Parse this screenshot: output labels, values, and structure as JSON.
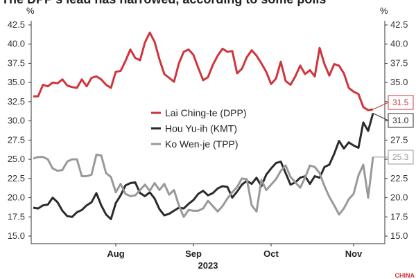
{
  "chart_data": {
    "type": "line",
    "title": "The DPP's lead has narrowed, according to some polls",
    "y_unit": "%",
    "x_axis_label": "2023",
    "logo": "CHINA",
    "categories": [
      null,
      null,
      null,
      null,
      null,
      null,
      null,
      null,
      null,
      null,
      null,
      null,
      null,
      null,
      null,
      null,
      null,
      "Aug",
      null,
      null,
      null,
      null,
      null,
      null,
      null,
      null,
      null,
      null,
      null,
      null,
      null,
      null,
      null,
      "Sep",
      null,
      null,
      null,
      null,
      null,
      null,
      null,
      null,
      null,
      null,
      null,
      null,
      null,
      null,
      null,
      "Oct",
      null,
      null,
      null,
      null,
      null,
      null,
      null,
      null,
      null,
      null,
      null,
      null,
      null,
      null,
      null,
      null,
      "Nov",
      null,
      null,
      null,
      null
    ],
    "series": [
      {
        "name": "Lai Ching-te (DPP)",
        "color": "#d0343c",
        "end_label": "31.5",
        "values": [
          33.2,
          33.2,
          34.7,
          34.5,
          35.0,
          34.9,
          35.4,
          34.6,
          34.4,
          34.3,
          35.4,
          34.5,
          35.6,
          35.8,
          35.4,
          34.7,
          34.3,
          36.4,
          36.5,
          37.8,
          39.3,
          38.2,
          37.9,
          40.2,
          41.5,
          40.3,
          38.0,
          36.1,
          35.6,
          35.1,
          37.5,
          39.0,
          39.3,
          38.6,
          36.9,
          35.3,
          35.7,
          37.3,
          38.5,
          39.4,
          39.0,
          39.1,
          36.2,
          36.8,
          38.3,
          39.2,
          38.5,
          37.5,
          36.4,
          34.8,
          35.5,
          37.7,
          35.2,
          34.7,
          35.8,
          37.2,
          36.1,
          36.6,
          35.8,
          39.5,
          37.4,
          35.9,
          37.4,
          37.2,
          36.2,
          34.3,
          33.8,
          33.5,
          31.8,
          31.4,
          31.5
        ]
      },
      {
        "name": "Hou Yu-ih (KMT)",
        "color": "#2b2b2b",
        "end_label": "31.0",
        "values": [
          18.7,
          18.6,
          19.0,
          19.1,
          20.0,
          19.4,
          18.3,
          17.6,
          17.5,
          18.1,
          18.4,
          19.0,
          19.4,
          20.6,
          19.0,
          17.8,
          17.2,
          19.3,
          20.3,
          21.6,
          21.9,
          22.0,
          20.6,
          20.2,
          20.7,
          19.9,
          18.5,
          17.7,
          17.9,
          18.3,
          18.7,
          18.6,
          19.2,
          19.7,
          20.5,
          20.9,
          20.3,
          20.6,
          21.2,
          21.5,
          21.4,
          20.0,
          20.8,
          21.7,
          22.2,
          21.8,
          22.6,
          21.5,
          23.0,
          23.8,
          24.5,
          24.7,
          23.2,
          21.7,
          22.0,
          22.6,
          22.8,
          21.8,
          22.8,
          22.6,
          24.0,
          24.3,
          25.7,
          27.4,
          26.4,
          27.2,
          26.8,
          26.5,
          29.8,
          28.7,
          31.0
        ]
      },
      {
        "name": "Ko Wen-je (TPP)",
        "color": "#999999",
        "end_label": "25.3",
        "values": [
          25.1,
          25.3,
          25.3,
          25.0,
          23.8,
          23.5,
          23.6,
          24.7,
          25.0,
          25.0,
          22.8,
          22.8,
          23.0,
          25.6,
          25.5,
          23.2,
          22.7,
          20.7,
          21.8,
          20.5,
          20.2,
          20.3,
          21.0,
          21.7,
          20.9,
          21.9,
          21.0,
          21.8,
          20.4,
          21.0,
          19.0,
          17.5,
          18.4,
          18.3,
          18.3,
          18.6,
          19.6,
          18.9,
          18.2,
          18.9,
          19.9,
          20.7,
          21.4,
          22.5,
          22.4,
          19.0,
          18.2,
          22.3,
          21.0,
          21.7,
          22.4,
          23.5,
          24.2,
          22.7,
          22.0,
          21.3,
          22.6,
          24.2,
          24.0,
          23.2,
          21.5,
          20.1,
          19.0,
          17.8,
          18.6,
          19.8,
          20.5,
          22.9,
          24.3,
          20.0,
          25.3
        ]
      }
    ],
    "ylim": [
      15,
      42.5
    ],
    "yticks": [
      {
        "value": 15,
        "label": "15.0"
      },
      {
        "value": 17.5,
        "label": "17.5"
      },
      {
        "value": 20,
        "label": "20.0"
      },
      {
        "value": 22.5,
        "label": "22.5"
      },
      {
        "value": 25,
        "label": "25.0"
      },
      {
        "value": 27.5,
        "label": "27.5"
      },
      {
        "value": 30,
        "label": "30.0"
      },
      {
        "value": 32.5,
        "label": "32.5"
      },
      {
        "value": 35,
        "label": "35.0"
      },
      {
        "value": 37.5,
        "label": "37.5"
      },
      {
        "value": 40,
        "label": "40.0"
      },
      {
        "value": 42.5,
        "label": "42.5"
      }
    ],
    "y2lim": [
      15,
      42.5
    ],
    "y2ticks": [
      {
        "value": 15,
        "label": "15.0"
      },
      {
        "value": 17.5,
        "label": "17.5"
      },
      {
        "value": 20,
        "label": "20.0"
      },
      {
        "value": 22.5,
        "label": "22.5"
      },
      {
        "value": 25,
        "label": "25.0"
      },
      {
        "value": 27.5,
        "label": "27.5"
      },
      {
        "value": 30,
        "label": "30.0"
      },
      {
        "value": 32.5,
        "label": "32.5"
      },
      {
        "value": 35,
        "label": "35.0"
      },
      {
        "value": 37.5,
        "label": "37.5"
      },
      {
        "value": 40,
        "label": "40.0"
      },
      {
        "value": 42.5,
        "label": "42.5"
      }
    ],
    "grid": false
  }
}
